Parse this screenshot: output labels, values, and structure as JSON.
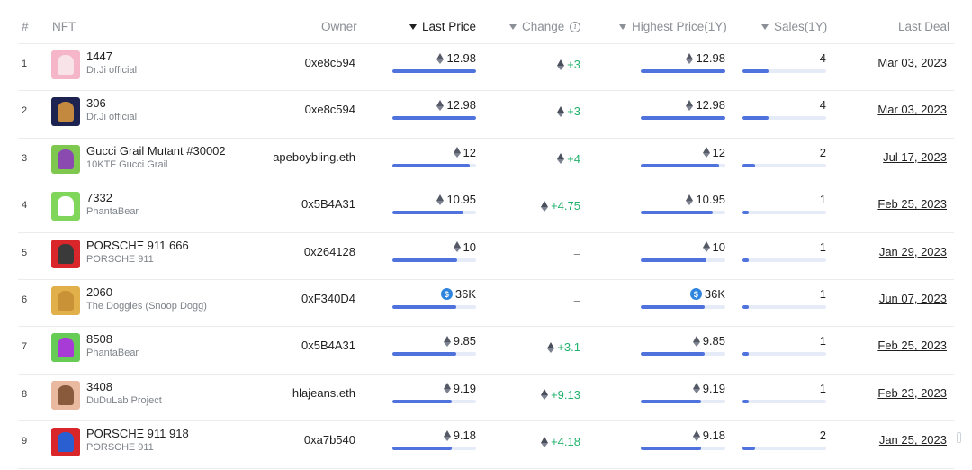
{
  "header": {
    "index": "#",
    "nft": "NFT",
    "owner": "Owner",
    "last_price": "Last Price",
    "change": "Change",
    "highest_price": "Highest Price(1Y)",
    "sales": "Sales(1Y)",
    "last_deal": "Last Deal"
  },
  "colors": {
    "accent": "#4f72dd",
    "positive": "#23b26d",
    "bar_track": "#e6ebf8"
  },
  "rows": [
    {
      "index": "1",
      "name": "1447",
      "collection": "Dr.Ji official",
      "owner": "0xe8c594",
      "last_price": "12.98",
      "currency": "eth",
      "change": "+3",
      "highest_price": "12.98",
      "sales": "4",
      "last_deal": "Mar 03, 2023",
      "last_price_fill": 1.0,
      "highest_price_fill": 1.0,
      "sales_fill": 0.31,
      "thumb_bg": "#f4b6c8",
      "thumb_fig": "#f7e3e8",
      "thumb_icon": "pink-character-icon"
    },
    {
      "index": "2",
      "name": "306",
      "collection": "Dr.Ji official",
      "owner": "0xe8c594",
      "last_price": "12.98",
      "currency": "eth",
      "change": "+3",
      "highest_price": "12.98",
      "sales": "4",
      "last_deal": "Mar 03, 2023",
      "last_price_fill": 1.0,
      "highest_price_fill": 1.0,
      "sales_fill": 0.31,
      "thumb_bg": "#1c2350",
      "thumb_fig": "#c3893f",
      "thumb_icon": "guitar-icon"
    },
    {
      "index": "3",
      "name": "Gucci Grail Mutant #30002",
      "collection": "10KTF Gucci Grail",
      "owner": "apeboybling.eth",
      "last_price": "12",
      "currency": "eth",
      "change": "+4",
      "highest_price": "12",
      "sales": "2",
      "last_deal": "Jul 17, 2023",
      "last_price_fill": 0.93,
      "highest_price_fill": 0.93,
      "sales_fill": 0.15,
      "thumb_bg": "#7ec850",
      "thumb_fig": "#8a4ab0",
      "thumb_icon": "mutant-ape-icon"
    },
    {
      "index": "4",
      "name": "7332",
      "collection": "PhantaBear",
      "owner": "0x5B4A31",
      "last_price": "10.95",
      "currency": "eth",
      "change": "+4.75",
      "highest_price": "10.95",
      "sales": "1",
      "last_deal": "Feb 25, 2023",
      "last_price_fill": 0.85,
      "highest_price_fill": 0.85,
      "sales_fill": 0.07,
      "thumb_bg": "#7fd65a",
      "thumb_fig": "#ffffff",
      "thumb_icon": "bear-icon"
    },
    {
      "index": "5",
      "name": "PORSCHΞ 911 666",
      "collection": "PORSCHΞ 911",
      "owner": "0x264128",
      "last_price": "10",
      "currency": "eth",
      "change": "–",
      "highest_price": "10",
      "sales": "1",
      "last_deal": "Jan 29, 2023",
      "last_price_fill": 0.77,
      "highest_price_fill": 0.78,
      "sales_fill": 0.07,
      "thumb_bg": "#d8262b",
      "thumb_fig": "#3a3a3a",
      "thumb_icon": "porsche-car-icon"
    },
    {
      "index": "6",
      "name": "2060",
      "collection": "The Doggies (Snoop Dogg)",
      "owner": "0xF340D4",
      "last_price": "36K",
      "currency": "usd",
      "change": "–",
      "highest_price": "36K",
      "sales": "1",
      "last_deal": "Jun 07, 2023",
      "last_price_fill": 0.76,
      "highest_price_fill": 0.76,
      "sales_fill": 0.07,
      "thumb_bg": "#e2b04a",
      "thumb_fig": "#c99236",
      "thumb_icon": "doggie-icon"
    },
    {
      "index": "7",
      "name": "8508",
      "collection": "PhantaBear",
      "owner": "0x5B4A31",
      "last_price": "9.85",
      "currency": "eth",
      "change": "+3.1",
      "highest_price": "9.85",
      "sales": "1",
      "last_deal": "Feb 25, 2023",
      "last_price_fill": 0.76,
      "highest_price_fill": 0.76,
      "sales_fill": 0.07,
      "thumb_bg": "#66cc55",
      "thumb_fig": "#a83ad6",
      "thumb_icon": "bear-icon"
    },
    {
      "index": "8",
      "name": "3408",
      "collection": "DuDuLab Project",
      "owner": "hlajeans.eth",
      "last_price": "9.19",
      "currency": "eth",
      "change": "+9.13",
      "highest_price": "9.19",
      "sales": "1",
      "last_deal": "Feb 23, 2023",
      "last_price_fill": 0.71,
      "highest_price_fill": 0.71,
      "sales_fill": 0.07,
      "thumb_bg": "#e9b9a0",
      "thumb_fig": "#8a5a3c",
      "thumb_icon": "character-icon"
    },
    {
      "index": "9",
      "name": "PORSCHΞ 911 918",
      "collection": "PORSCHΞ 911",
      "owner": "0xa7b540",
      "last_price": "9.18",
      "currency": "eth",
      "change": "+4.18",
      "highest_price": "9.18",
      "sales": "2",
      "last_deal": "Jan 25, 2023",
      "last_price_fill": 0.71,
      "highest_price_fill": 0.71,
      "sales_fill": 0.15,
      "thumb_bg": "#d8262b",
      "thumb_fig": "#2a5fd1",
      "thumb_icon": "porsche-car-icon"
    }
  ]
}
